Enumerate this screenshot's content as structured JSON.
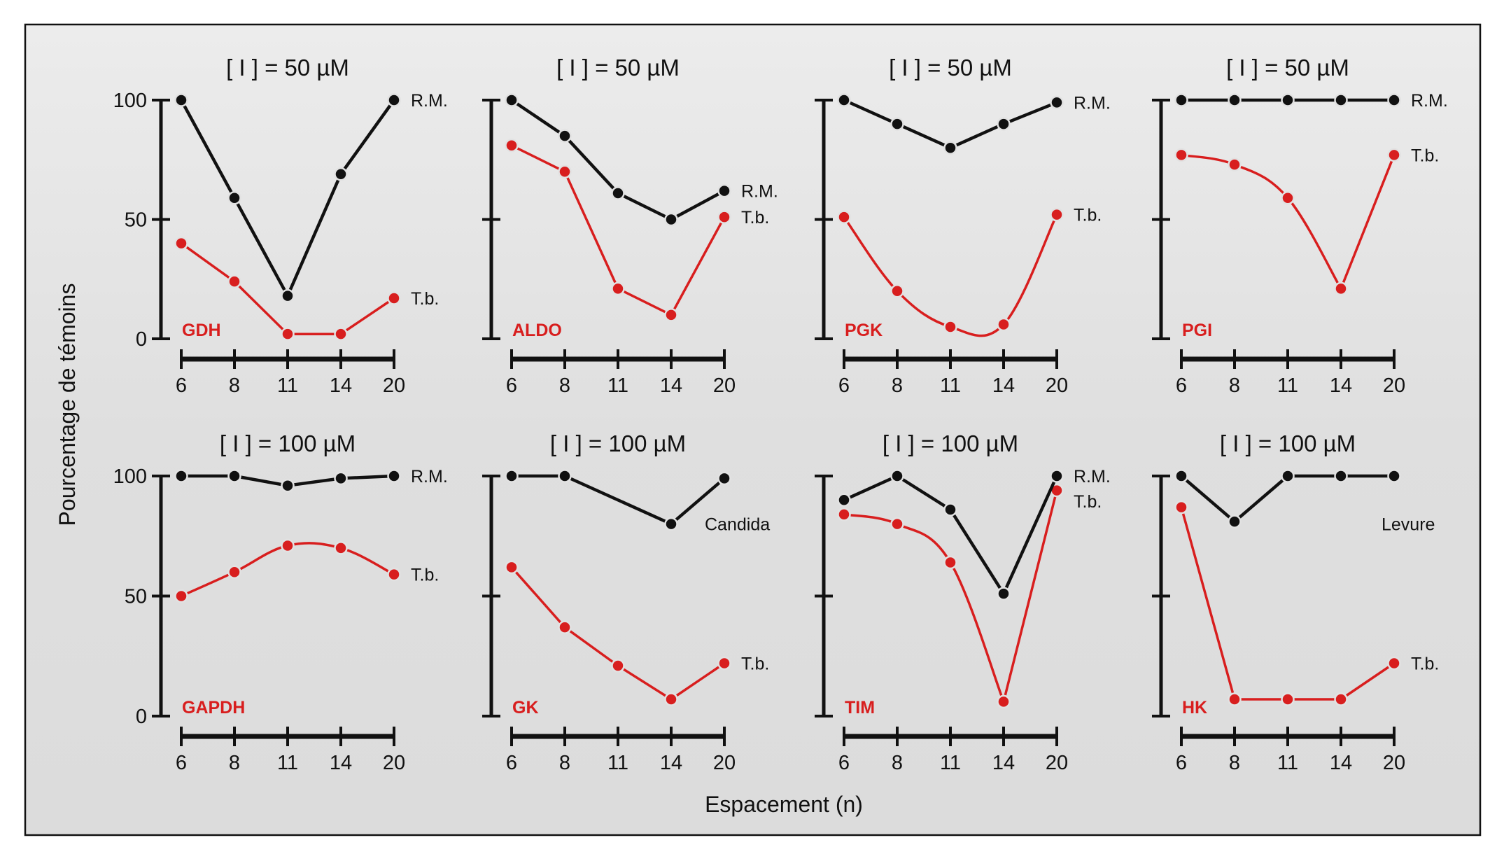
{
  "chart_data": {
    "type": "line",
    "title": "",
    "xlabel": "Espacement (n)",
    "ylabel": "Pourcentage de témoins",
    "x": [
      6,
      8,
      11,
      14,
      20
    ],
    "x_tick_labels": [
      "6",
      "8",
      "11",
      "14",
      "20"
    ],
    "y_ticks": [
      0,
      50,
      100
    ],
    "y_tick_labels": [
      "0",
      "50",
      "100"
    ],
    "ylim": [
      0,
      100
    ],
    "grid": false,
    "colors": {
      "reference": "#111111",
      "tb": "#d81e1e"
    },
    "panels": [
      {
        "title": "[ I ] = 50 µM",
        "enzyme": "GDH",
        "series": [
          {
            "name": "R.M.",
            "color": "reference",
            "x": [
              6,
              8,
              11,
              14,
              20
            ],
            "values": [
              100,
              59,
              18,
              69,
              100
            ],
            "curve": "linear"
          },
          {
            "name": "T.b.",
            "color": "tb",
            "x": [
              6,
              8,
              11,
              14,
              20
            ],
            "values": [
              40,
              24,
              2,
              2,
              17
            ],
            "curve": "linear"
          }
        ]
      },
      {
        "title": "[ I ] = 50 µM",
        "enzyme": "ALDO",
        "series": [
          {
            "name": "R.M.",
            "color": "reference",
            "x": [
              6,
              8,
              11,
              14,
              20
            ],
            "values": [
              100,
              85,
              61,
              50,
              62
            ],
            "curve": "linear"
          },
          {
            "name": "T.b.",
            "color": "tb",
            "x": [
              6,
              8,
              11,
              14,
              20
            ],
            "values": [
              81,
              70,
              21,
              10,
              51
            ],
            "curve": "linear"
          }
        ]
      },
      {
        "title": "[ I ] = 50 µM",
        "enzyme": "PGK",
        "series": [
          {
            "name": "R.M.",
            "color": "reference",
            "x": [
              6,
              8,
              11,
              14,
              20
            ],
            "values": [
              100,
              90,
              80,
              90,
              99
            ],
            "curve": "linear"
          },
          {
            "name": "T.b.",
            "color": "tb",
            "x": [
              6,
              8,
              11,
              14,
              20
            ],
            "values": [
              51,
              20,
              5,
              6,
              52
            ],
            "curve": "smooth"
          }
        ]
      },
      {
        "title": "[ I ] = 50 µM",
        "enzyme": "PGI",
        "series": [
          {
            "name": "R.M.",
            "color": "reference",
            "x": [
              6,
              8,
              11,
              14,
              20
            ],
            "values": [
              100,
              100,
              100,
              100,
              100
            ],
            "curve": "linear"
          },
          {
            "name": "T.b.",
            "color": "tb",
            "x": [
              6,
              8,
              11,
              14,
              20
            ],
            "values": [
              77,
              73,
              59,
              21,
              77
            ],
            "curve": "smooth-drop"
          }
        ]
      },
      {
        "title": "[ I ] = 100 µM",
        "enzyme": "GAPDH",
        "series": [
          {
            "name": "R.M.",
            "color": "reference",
            "x": [
              6,
              8,
              11,
              14,
              20
            ],
            "values": [
              100,
              100,
              96,
              99,
              100
            ],
            "curve": "linear"
          },
          {
            "name": "T.b.",
            "color": "tb",
            "x": [
              6,
              8,
              11,
              14,
              20
            ],
            "values": [
              50,
              60,
              71,
              70,
              59
            ],
            "curve": "arch"
          }
        ]
      },
      {
        "title": "[ I ] = 100 µM",
        "enzyme": "GK",
        "series": [
          {
            "name": "Candida",
            "color": "reference",
            "x": [
              6,
              8,
              14,
              20
            ],
            "values": [
              100,
              100,
              80,
              99
            ],
            "curve": "linear"
          },
          {
            "name": "T.b.",
            "color": "tb",
            "x": [
              6,
              8,
              11,
              14,
              20
            ],
            "values": [
              62,
              37,
              21,
              7,
              22
            ],
            "curve": "linear"
          }
        ]
      },
      {
        "title": "[ I ] = 100 µM",
        "enzyme": "TIM",
        "series": [
          {
            "name": "R.M.",
            "color": "reference",
            "x": [
              6,
              8,
              11,
              14,
              20
            ],
            "values": [
              90,
              100,
              86,
              51,
              100
            ],
            "curve": "linear"
          },
          {
            "name": "T.b.",
            "color": "tb",
            "x": [
              6,
              8,
              11,
              14,
              20
            ],
            "values": [
              84,
              80,
              64,
              6,
              94
            ],
            "curve": "smooth-drop"
          }
        ]
      },
      {
        "title": "[ I ] = 100 µM",
        "enzyme": "HK",
        "series": [
          {
            "name": "Levure",
            "color": "reference",
            "x": [
              6,
              8,
              11,
              14,
              20
            ],
            "values": [
              100,
              81,
              100,
              100,
              100
            ],
            "curve": "linear"
          },
          {
            "name": "T.b.",
            "color": "tb",
            "x": [
              6,
              8,
              11,
              14,
              20
            ],
            "values": [
              87,
              7,
              7,
              7,
              22
            ],
            "curve": "linear"
          }
        ]
      }
    ]
  }
}
